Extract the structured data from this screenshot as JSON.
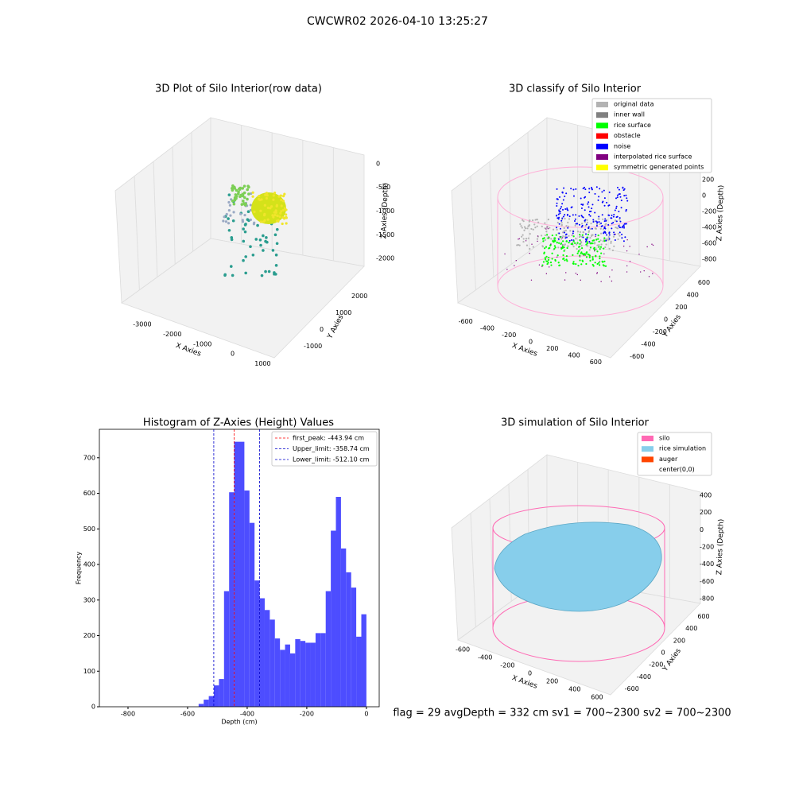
{
  "title": "CWCWR02 2026-04-10 13:25:27",
  "footer": "flag = 29  avgDepth = 332 cm  sv1 = 700~2300  sv2 = 700~2300",
  "chart_data": [
    {
      "type": "scatter3d",
      "title": "3D Plot of Silo Interior(row data)",
      "xlabel": "X Axies",
      "ylabel": "Y Axies",
      "zlabel": "Z Axies (Depth)",
      "xlim": [
        -3500,
        1200
      ],
      "ylim": [
        -1500,
        2500
      ],
      "zlim": [
        -2300,
        200
      ],
      "xticks": [
        -3000,
        -2000,
        -1000,
        0,
        1000
      ],
      "yticks": [
        -1000,
        0,
        1000,
        2000
      ],
      "zticks": [
        0,
        -500,
        -1000,
        -1500,
        -2000
      ]
    },
    {
      "type": "scatter3d",
      "title": "3D classify of Silo Interior",
      "xlabel": "X Axies",
      "ylabel": "Y Axies",
      "zlabel": "Z Axies (Depth)",
      "xlim": [
        -700,
        700
      ],
      "ylim": [
        -700,
        700
      ],
      "zlim": [
        -900,
        300
      ],
      "xticks": [
        -600,
        -400,
        -200,
        0,
        200,
        400,
        600
      ],
      "yticks": [
        -600,
        -400,
        -200,
        0,
        200,
        400,
        600
      ],
      "zticks": [
        200,
        0,
        -200,
        -400,
        -600,
        -800
      ],
      "legend": [
        {
          "name": "original data",
          "color": "#b3b3b3"
        },
        {
          "name": "inner wall",
          "color": "#808080"
        },
        {
          "name": "rice surface",
          "color": "#00ff00"
        },
        {
          "name": "obstacle",
          "color": "#ff0000"
        },
        {
          "name": "noise",
          "color": "#0000ff"
        },
        {
          "name": "interpolated rice surface",
          "color": "#800080"
        },
        {
          "name": "symmetric generated points",
          "color": "#ffff00"
        }
      ]
    },
    {
      "type": "histogram",
      "title": "Histogram of Z-Axies (Height) Values",
      "xlabel": "Depth (cm)",
      "ylabel": "Frequency",
      "color": "#4d4dff",
      "bins": [
        -563,
        -545.94,
        -528.88,
        -511.82,
        -494.76,
        -477.7,
        -460.64,
        -443.58,
        -426.52,
        -409.45,
        -392.39,
        -375.33,
        -358.27,
        -341.21,
        -324.15,
        -307.09,
        -290.03,
        -272.97,
        -255.91,
        -238.85,
        -221.79,
        -204.73,
        -187.67,
        -170.61,
        -153.55,
        -136.48,
        -119.42,
        -102.36,
        -85.3,
        -68.24,
        -51.18,
        -34.12,
        -17.06,
        0
      ],
      "values": [
        8,
        20,
        30,
        60,
        78,
        325,
        603,
        745,
        745,
        608,
        517,
        355,
        305,
        272,
        245,
        192,
        160,
        175,
        150,
        190,
        185,
        180,
        180,
        207,
        207,
        325,
        495,
        590,
        445,
        378,
        335,
        197,
        260
      ],
      "xlim": [
        -896,
        43
      ],
      "ylim": [
        0,
        780
      ],
      "xticks": [
        -800,
        -600,
        -400,
        -200,
        0
      ],
      "yticks": [
        0,
        100,
        200,
        300,
        400,
        500,
        600,
        700
      ],
      "vlines": [
        {
          "name": "first_peak: -443.94 cm",
          "value": -443.94,
          "color": "#ff0000"
        },
        {
          "name": "Upper_limit: -358.74 cm",
          "value": -358.74,
          "color": "#0000cc"
        },
        {
          "name": "Lower_limit: -512.10 cm",
          "value": -512.1,
          "color": "#0000cc"
        }
      ]
    },
    {
      "type": "surface3d",
      "title": "3D simulation of Silo Interior",
      "xlabel": "X Axies",
      "ylabel": "Y Axies",
      "zlabel": "Z Axies (Depth)",
      "xlim": [
        -700,
        700
      ],
      "ylim": [
        -700,
        700
      ],
      "zlim": [
        -900,
        500
      ],
      "xticks": [
        -600,
        -400,
        -200,
        0,
        200,
        400,
        600
      ],
      "yticks": [
        -600,
        -400,
        -200,
        0,
        200,
        400,
        600
      ],
      "zticks": [
        400,
        200,
        0,
        -200,
        -400,
        -600,
        -800
      ],
      "legend": [
        {
          "name": "silo",
          "color": "#ff69b4"
        },
        {
          "name": "rice simulation",
          "color": "#87ceeb"
        },
        {
          "name": "auger",
          "color": "#ff4500"
        },
        {
          "name": "center(0,0)",
          "color": "#ffffff"
        }
      ]
    }
  ]
}
